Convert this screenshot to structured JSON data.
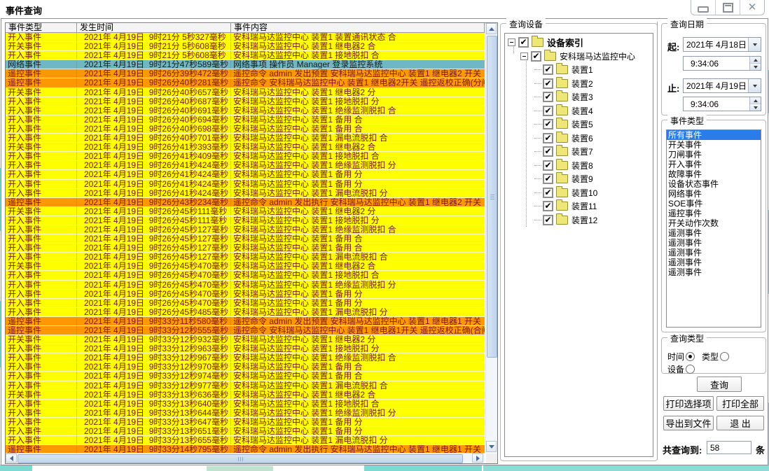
{
  "window": {
    "title": "事件查询",
    "controls": {
      "minimize": "minimize",
      "restore": "restore",
      "close": "close"
    }
  },
  "colors": {
    "row_yellow": "#FFFF00",
    "row_orange": "#FF9800",
    "row_blue": "#6FB7C3",
    "row_text": "#7A1A1A",
    "selection_blue": "#2B7CE9"
  },
  "table": {
    "columns": [
      "事件类型",
      "发生时间",
      "事件内容"
    ],
    "rows": [
      {
        "t": "开入事件",
        "d": "2021年 4月19日  9时21分 5秒327毫秒",
        "c": "安科瑞马达监控中心 装置1 装置通讯状态 合",
        "s": "y"
      },
      {
        "t": "开关事件",
        "d": "2021年 4月19日  9时21分 5秒608毫秒",
        "c": "安科瑞马达监控中心 装置1 继电器2 合",
        "s": "y"
      },
      {
        "t": "开入事件",
        "d": "2021年 4月19日  9时21分 5秒608毫秒",
        "c": "安科瑞马达监控中心 装置1 接地脱扣 合",
        "s": "y"
      },
      {
        "t": "网络事件",
        "d": "2021年 4月19日  9时21分47秒589毫秒",
        "c": "网络事项 操作员 Manager 登录监控系统",
        "s": "b"
      },
      {
        "t": "遥控事件",
        "d": "2021年 4月19日  9时26分39秒472毫秒",
        "c": "遥控命令 admin 发出预置 安科瑞马达监控中心 装置1 继电器2 开关",
        "s": "o"
      },
      {
        "t": "遥控事件",
        "d": "2021年 4月19日  9时26分40秒281毫秒",
        "c": "遥控命令 安科瑞马达监控中心 装置1 继电器2开关 遥控返校正确(分闸)",
        "s": "o"
      },
      {
        "t": "开关事件",
        "d": "2021年 4月19日  9时26分40秒657毫秒",
        "c": "安科瑞马达监控中心 装置1 继电器2 分",
        "s": "y"
      },
      {
        "t": "开入事件",
        "d": "2021年 4月19日  9时26分40秒687毫秒",
        "c": "安科瑞马达监控中心 装置1 接地脱扣 分",
        "s": "y"
      },
      {
        "t": "开入事件",
        "d": "2021年 4月19日  9时26分40秒691毫秒",
        "c": "安科瑞马达监控中心 装置1 绝缘监测脱扣 合",
        "s": "y"
      },
      {
        "t": "开入事件",
        "d": "2021年 4月19日  9时26分40秒694毫秒",
        "c": "安科瑞马达监控中心 装置1 备用 合",
        "s": "y"
      },
      {
        "t": "开入事件",
        "d": "2021年 4月19日  9时26分40秒698毫秒",
        "c": "安科瑞马达监控中心 装置1 备用 合",
        "s": "y"
      },
      {
        "t": "开入事件",
        "d": "2021年 4月19日  9时26分40秒701毫秒",
        "c": "安科瑞马达监控中心 装置1 漏电流脱扣 合",
        "s": "y"
      },
      {
        "t": "开关事件",
        "d": "2021年 4月19日  9时26分41秒393毫秒",
        "c": "安科瑞马达监控中心 装置1 继电器2 合",
        "s": "y"
      },
      {
        "t": "开入事件",
        "d": "2021年 4月19日  9时26分41秒409毫秒",
        "c": "安科瑞马达监控中心 装置1 接地脱扣 合",
        "s": "y"
      },
      {
        "t": "开入事件",
        "d": "2021年 4月19日  9时26分41秒424毫秒",
        "c": "安科瑞马达监控中心 装置1 绝缘监测脱扣 分",
        "s": "y"
      },
      {
        "t": "开入事件",
        "d": "2021年 4月19日  9时26分41秒424毫秒",
        "c": "安科瑞马达监控中心 装置1 备用 分",
        "s": "y"
      },
      {
        "t": "开入事件",
        "d": "2021年 4月19日  9时26分41秒424毫秒",
        "c": "安科瑞马达监控中心 装置1 备用 分",
        "s": "y"
      },
      {
        "t": "开入事件",
        "d": "2021年 4月19日  9时26分41秒424毫秒",
        "c": "安科瑞马达监控中心 装置1 漏电流脱扣 分",
        "s": "y"
      },
      {
        "t": "遥控事件",
        "d": "2021年 4月19日  9时26分43秒234毫秒",
        "c": "遥控命令 admin 发出执行 安科瑞马达监控中心 装置1 继电器2 开关",
        "s": "o"
      },
      {
        "t": "开关事件",
        "d": "2021年 4月19日  9时26分45秒111毫秒",
        "c": "安科瑞马达监控中心 装置1 继电器2 分",
        "s": "y"
      },
      {
        "t": "开入事件",
        "d": "2021年 4月19日  9时26分45秒111毫秒",
        "c": "安科瑞马达监控中心 装置1 接地脱扣 分",
        "s": "y"
      },
      {
        "t": "开入事件",
        "d": "2021年 4月19日  9时26分45秒127毫秒",
        "c": "安科瑞马达监控中心 装置1 绝缘监测脱扣 合",
        "s": "y"
      },
      {
        "t": "开入事件",
        "d": "2021年 4月19日  9时26分45秒127毫秒",
        "c": "安科瑞马达监控中心 装置1 备用 合",
        "s": "y"
      },
      {
        "t": "开入事件",
        "d": "2021年 4月19日  9时26分45秒127毫秒",
        "c": "安科瑞马达监控中心 装置1 备用 合",
        "s": "y"
      },
      {
        "t": "开入事件",
        "d": "2021年 4月19日  9时26分45秒127毫秒",
        "c": "安科瑞马达监控中心 装置1 漏电流脱扣 合",
        "s": "y"
      },
      {
        "t": "开关事件",
        "d": "2021年 4月19日  9时26分45秒470毫秒",
        "c": "安科瑞马达监控中心 装置1 继电器2 合",
        "s": "y"
      },
      {
        "t": "开入事件",
        "d": "2021年 4月19日  9时26分45秒470毫秒",
        "c": "安科瑞马达监控中心 装置1 接地脱扣 合",
        "s": "y"
      },
      {
        "t": "开入事件",
        "d": "2021年 4月19日  9时26分45秒470毫秒",
        "c": "安科瑞马达监控中心 装置1 绝缘监测脱扣 分",
        "s": "y"
      },
      {
        "t": "开入事件",
        "d": "2021年 4月19日  9时26分45秒470毫秒",
        "c": "安科瑞马达监控中心 装置1 备用 分",
        "s": "y"
      },
      {
        "t": "开入事件",
        "d": "2021年 4月19日  9时26分45秒470毫秒",
        "c": "安科瑞马达监控中心 装置1 备用 分",
        "s": "y"
      },
      {
        "t": "开入事件",
        "d": "2021年 4月19日  9时26分45秒485毫秒",
        "c": "安科瑞马达监控中心 装置1 漏电流脱扣 分",
        "s": "y"
      },
      {
        "t": "遥控事件",
        "d": "2021年 4月19日  9时33分11秒580毫秒",
        "c": "遥控命令 admin 发出预置 安科瑞马达监控中心 装置1 继电器1 开关",
        "s": "o"
      },
      {
        "t": "遥控事件",
        "d": "2021年 4月19日  9时33分12秒555毫秒",
        "c": "遥控命令 安科瑞马达监控中心 装置1 继电器1开关 遥控返校正确(合闸)",
        "s": "o"
      },
      {
        "t": "开关事件",
        "d": "2021年 4月19日  9时33分12秒932毫秒",
        "c": "安科瑞马达监控中心 装置1 继电器2 分",
        "s": "y"
      },
      {
        "t": "开入事件",
        "d": "2021年 4月19日  9时33分12秒963毫秒",
        "c": "安科瑞马达监控中心 装置1 接地脱扣 分",
        "s": "y"
      },
      {
        "t": "开入事件",
        "d": "2021年 4月19日  9时33分12秒967毫秒",
        "c": "安科瑞马达监控中心 装置1 绝缘监测脱扣 合",
        "s": "y"
      },
      {
        "t": "开入事件",
        "d": "2021年 4月19日  9时33分12秒970毫秒",
        "c": "安科瑞马达监控中心 装置1 备用 合",
        "s": "y"
      },
      {
        "t": "开入事件",
        "d": "2021年 4月19日  9时33分12秒974毫秒",
        "c": "安科瑞马达监控中心 装置1 备用 合",
        "s": "y"
      },
      {
        "t": "开入事件",
        "d": "2021年 4月19日  9时33分12秒977毫秒",
        "c": "安科瑞马达监控中心 装置1 漏电流脱扣 合",
        "s": "y"
      },
      {
        "t": "开关事件",
        "d": "2021年 4月19日  9时33分13秒636毫秒",
        "c": "安科瑞马达监控中心 装置1 继电器2 合",
        "s": "y"
      },
      {
        "t": "开入事件",
        "d": "2021年 4月19日  9时33分13秒640毫秒",
        "c": "安科瑞马达监控中心 装置1 接地脱扣 合",
        "s": "y"
      },
      {
        "t": "开入事件",
        "d": "2021年 4月19日  9时33分13秒644毫秒",
        "c": "安科瑞马达监控中心 装置1 绝缘监测脱扣 分",
        "s": "y"
      },
      {
        "t": "开入事件",
        "d": "2021年 4月19日  9时33分13秒647毫秒",
        "c": "安科瑞马达监控中心 装置1 备用 分",
        "s": "y"
      },
      {
        "t": "开入事件",
        "d": "2021年 4月19日  9时33分13秒651毫秒",
        "c": "安科瑞马达监控中心 装置1 备用 分",
        "s": "y"
      },
      {
        "t": "开入事件",
        "d": "2021年 4月19日  9时33分13秒655毫秒",
        "c": "安科瑞马达监控中心 装置1 漏电流脱扣 分",
        "s": "y"
      },
      {
        "t": "遥控事件",
        "d": "2021年 4月19日  9时33分14秒795毫秒",
        "c": "遥控命令 admin 发出执行 安科瑞马达监控中心 装置1 继电器1 开关",
        "s": "o"
      }
    ]
  },
  "device_panel": {
    "title": "查询设备",
    "root_label": "设备索引",
    "center_label": "安科瑞马达监控中心",
    "devices": [
      "装置1",
      "装置2",
      "装置3",
      "装置4",
      "装置5",
      "装置6",
      "装置7",
      "装置8",
      "装置9",
      "装置10",
      "装置11",
      "装置12"
    ]
  },
  "date_panel": {
    "title": "查询日期",
    "from_label": "起:",
    "from_date": "2021年 4月18日",
    "from_time": "9:34:06",
    "to_label": "止:",
    "to_date": "2021年 4月19日",
    "to_time": "9:34:06"
  },
  "event_type_panel": {
    "title": "事件类型",
    "selected_index": 0,
    "items": [
      "所有事件",
      "开关事件",
      "刀闸事件",
      "开入事件",
      "故障事件",
      "设备状态事件",
      "网络事件",
      "SOE事件",
      "遥控事件",
      "开关动作次数",
      "遥测事件",
      "遥测事件",
      "遥测事件",
      "遥测事件",
      "遥测事件"
    ]
  },
  "query_type_panel": {
    "title": "查询类型",
    "options": [
      {
        "label": "时间",
        "selected": true
      },
      {
        "label": "类型",
        "selected": false
      },
      {
        "label": "设备",
        "selected": false
      }
    ]
  },
  "buttons": {
    "query": "查询",
    "print_selected": "打印选择项",
    "print_all": "打印全部",
    "export": "导出到文件",
    "exit": "退 出"
  },
  "result_count": {
    "label": "共查询到:",
    "value": "58",
    "unit": "条"
  }
}
